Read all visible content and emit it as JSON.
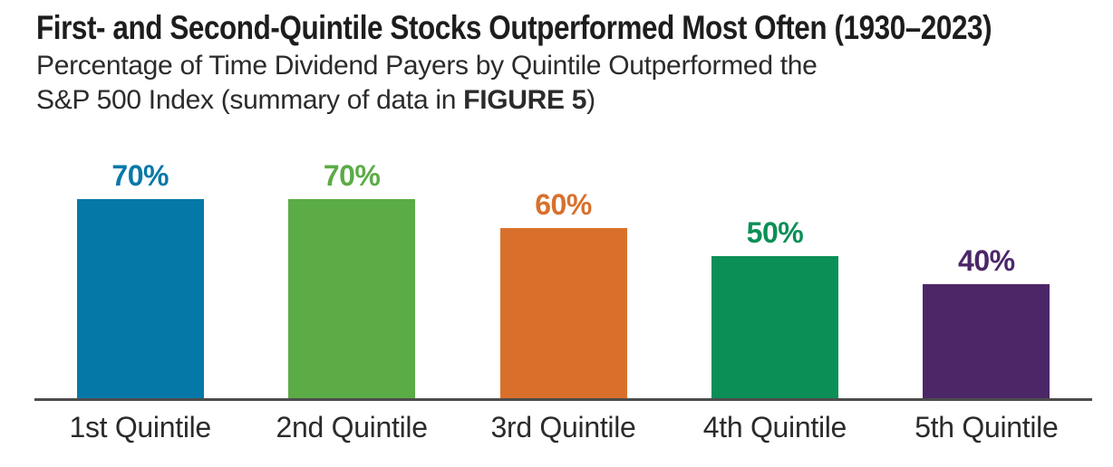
{
  "header": {
    "title": "First- and Second-Quintile Stocks Outperformed Most Often (1930–2023)",
    "subtitle_line1": "Percentage of Time Dividend Payers by Quintile Outperformed the",
    "subtitle_line2": {
      "prefix": "S&P 500 Index (summary of data in ",
      "emphasis": "FIGURE 5",
      "suffix": ")"
    }
  },
  "chart_data": {
    "type": "bar",
    "title": "First- and Second-Quintile Stocks Outperformed Most Often (1930–2023)",
    "subtitle": "Percentage of Time Dividend Payers by Quintile Outperformed the S&P 500 Index (summary of data in FIGURE 5)",
    "categories": [
      "1st Quintile",
      "2nd Quintile",
      "3rd Quintile",
      "4th Quintile",
      "5th Quintile"
    ],
    "values": [
      70,
      70,
      60,
      50,
      40
    ],
    "value_labels": [
      "70%",
      "70%",
      "60%",
      "50%",
      "40%"
    ],
    "bar_colors": [
      "#0678A8",
      "#5BAB46",
      "#D8702C",
      "#0B8F57",
      "#4B2768"
    ],
    "xlabel": "",
    "ylabel": "",
    "ylim": [
      0,
      100
    ],
    "grid": false,
    "legend": false,
    "y_axis_visible": false,
    "baseline_color": "#4D4D4D",
    "category_label_color": "#2B2B2B"
  }
}
